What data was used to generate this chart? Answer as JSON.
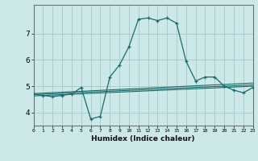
{
  "title": "",
  "xlabel": "Humidex (Indice chaleur)",
  "ylabel": "",
  "background_color": "#cce8e8",
  "grid_color": "#aacccc",
  "line_color": "#1a6b6b",
  "xmin": 0,
  "xmax": 23,
  "ymin": 3.5,
  "ymax": 8.1,
  "yticks": [
    4,
    5,
    6,
    7
  ],
  "xticks": [
    0,
    1,
    2,
    3,
    4,
    5,
    6,
    7,
    8,
    9,
    10,
    11,
    12,
    13,
    14,
    15,
    16,
    17,
    18,
    19,
    20,
    21,
    22,
    23
  ],
  "series": [
    [
      0,
      4.7
    ],
    [
      1,
      4.65
    ],
    [
      2,
      4.6
    ],
    [
      3,
      4.65
    ],
    [
      4,
      4.7
    ],
    [
      5,
      4.95
    ],
    [
      6,
      3.75
    ],
    [
      7,
      3.85
    ],
    [
      8,
      5.35
    ],
    [
      9,
      5.8
    ],
    [
      10,
      6.5
    ],
    [
      11,
      7.55
    ],
    [
      12,
      7.6
    ],
    [
      13,
      7.5
    ],
    [
      14,
      7.6
    ],
    [
      15,
      7.4
    ],
    [
      16,
      5.95
    ],
    [
      17,
      5.2
    ],
    [
      18,
      5.35
    ],
    [
      19,
      5.35
    ],
    [
      20,
      5.0
    ],
    [
      21,
      4.85
    ],
    [
      22,
      4.75
    ],
    [
      23,
      4.95
    ]
  ],
  "linear_series": [
    [
      0,
      4.68
    ],
    [
      23,
      5.05
    ]
  ],
  "linear_series2": [
    [
      0,
      4.72
    ],
    [
      23,
      5.12
    ]
  ],
  "linear_series3": [
    [
      0,
      4.63
    ],
    [
      23,
      5.0
    ]
  ]
}
